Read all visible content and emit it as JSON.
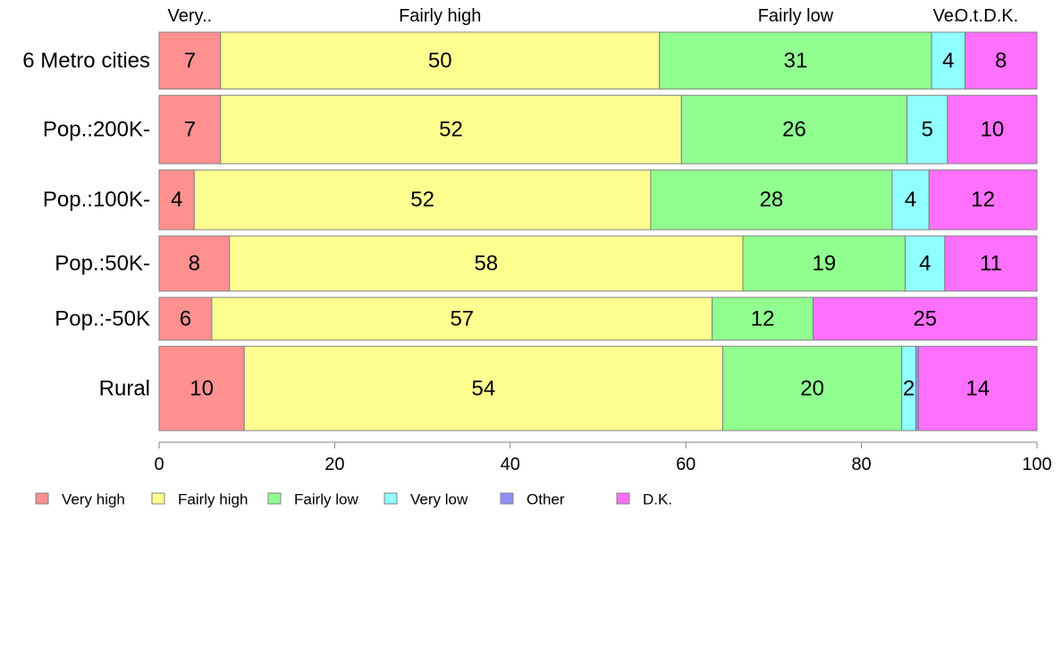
{
  "chart_data": {
    "type": "bar",
    "orientation": "horizontal",
    "stacked": true,
    "xlim": [
      0,
      100
    ],
    "x_ticks": [
      "0",
      "20",
      "40",
      "60",
      "80",
      "100"
    ],
    "categories": [
      "6 Metro cities",
      "Pop.:200K-",
      "Pop.:100K-",
      "Pop.:50K-",
      "Pop.:-50K",
      "Rural"
    ],
    "row_weights": [
      1.0,
      1.2,
      1.05,
      0.97,
      0.75,
      1.48
    ],
    "series": [
      {
        "name": "Very high",
        "color": "#ff9090",
        "values": [
          7,
          7,
          4,
          8,
          6,
          9.7
        ]
      },
      {
        "name": "Fairly high",
        "color": "#ffff90",
        "values": [
          50,
          52.5,
          52,
          58.5,
          57,
          54.5
        ]
      },
      {
        "name": "Fairly low",
        "color": "#90ff90",
        "values": [
          31,
          25.7,
          27.5,
          18.5,
          11.5,
          20.4
        ]
      },
      {
        "name": "Very low",
        "color": "#90ffff",
        "values": [
          3.8,
          4.6,
          4.2,
          4.5,
          0,
          1.6
        ]
      },
      {
        "name": "Other",
        "color": "#9090ff",
        "values": [
          0,
          0,
          0,
          0,
          0,
          0.3
        ]
      },
      {
        "name": "D.K.",
        "color": "#ff70ff",
        "values": [
          8.2,
          10.2,
          12.3,
          10.5,
          25.5,
          13.5
        ]
      }
    ],
    "bar_labels": [
      [
        "7",
        "50",
        "31",
        "4",
        "",
        "8"
      ],
      [
        "7",
        "52",
        "26",
        "5",
        "",
        "10"
      ],
      [
        "4",
        "52",
        "28",
        "4",
        "",
        "12"
      ],
      [
        "8",
        "58",
        "19",
        "4",
        "",
        "11"
      ],
      [
        "6",
        "57",
        "12",
        "",
        "",
        "25"
      ],
      [
        "10",
        "54",
        "20",
        "2",
        "",
        "14"
      ]
    ],
    "top_labels": [
      "Very..",
      "Fairly high",
      "Fairly low",
      "Ve..",
      "O.t..",
      "D.K."
    ],
    "legend": {
      "position": "bottom",
      "entries": [
        "Very high",
        "Fairly high",
        "Fairly low",
        "Very low",
        "Other",
        "D.K."
      ]
    },
    "grid": false
  }
}
